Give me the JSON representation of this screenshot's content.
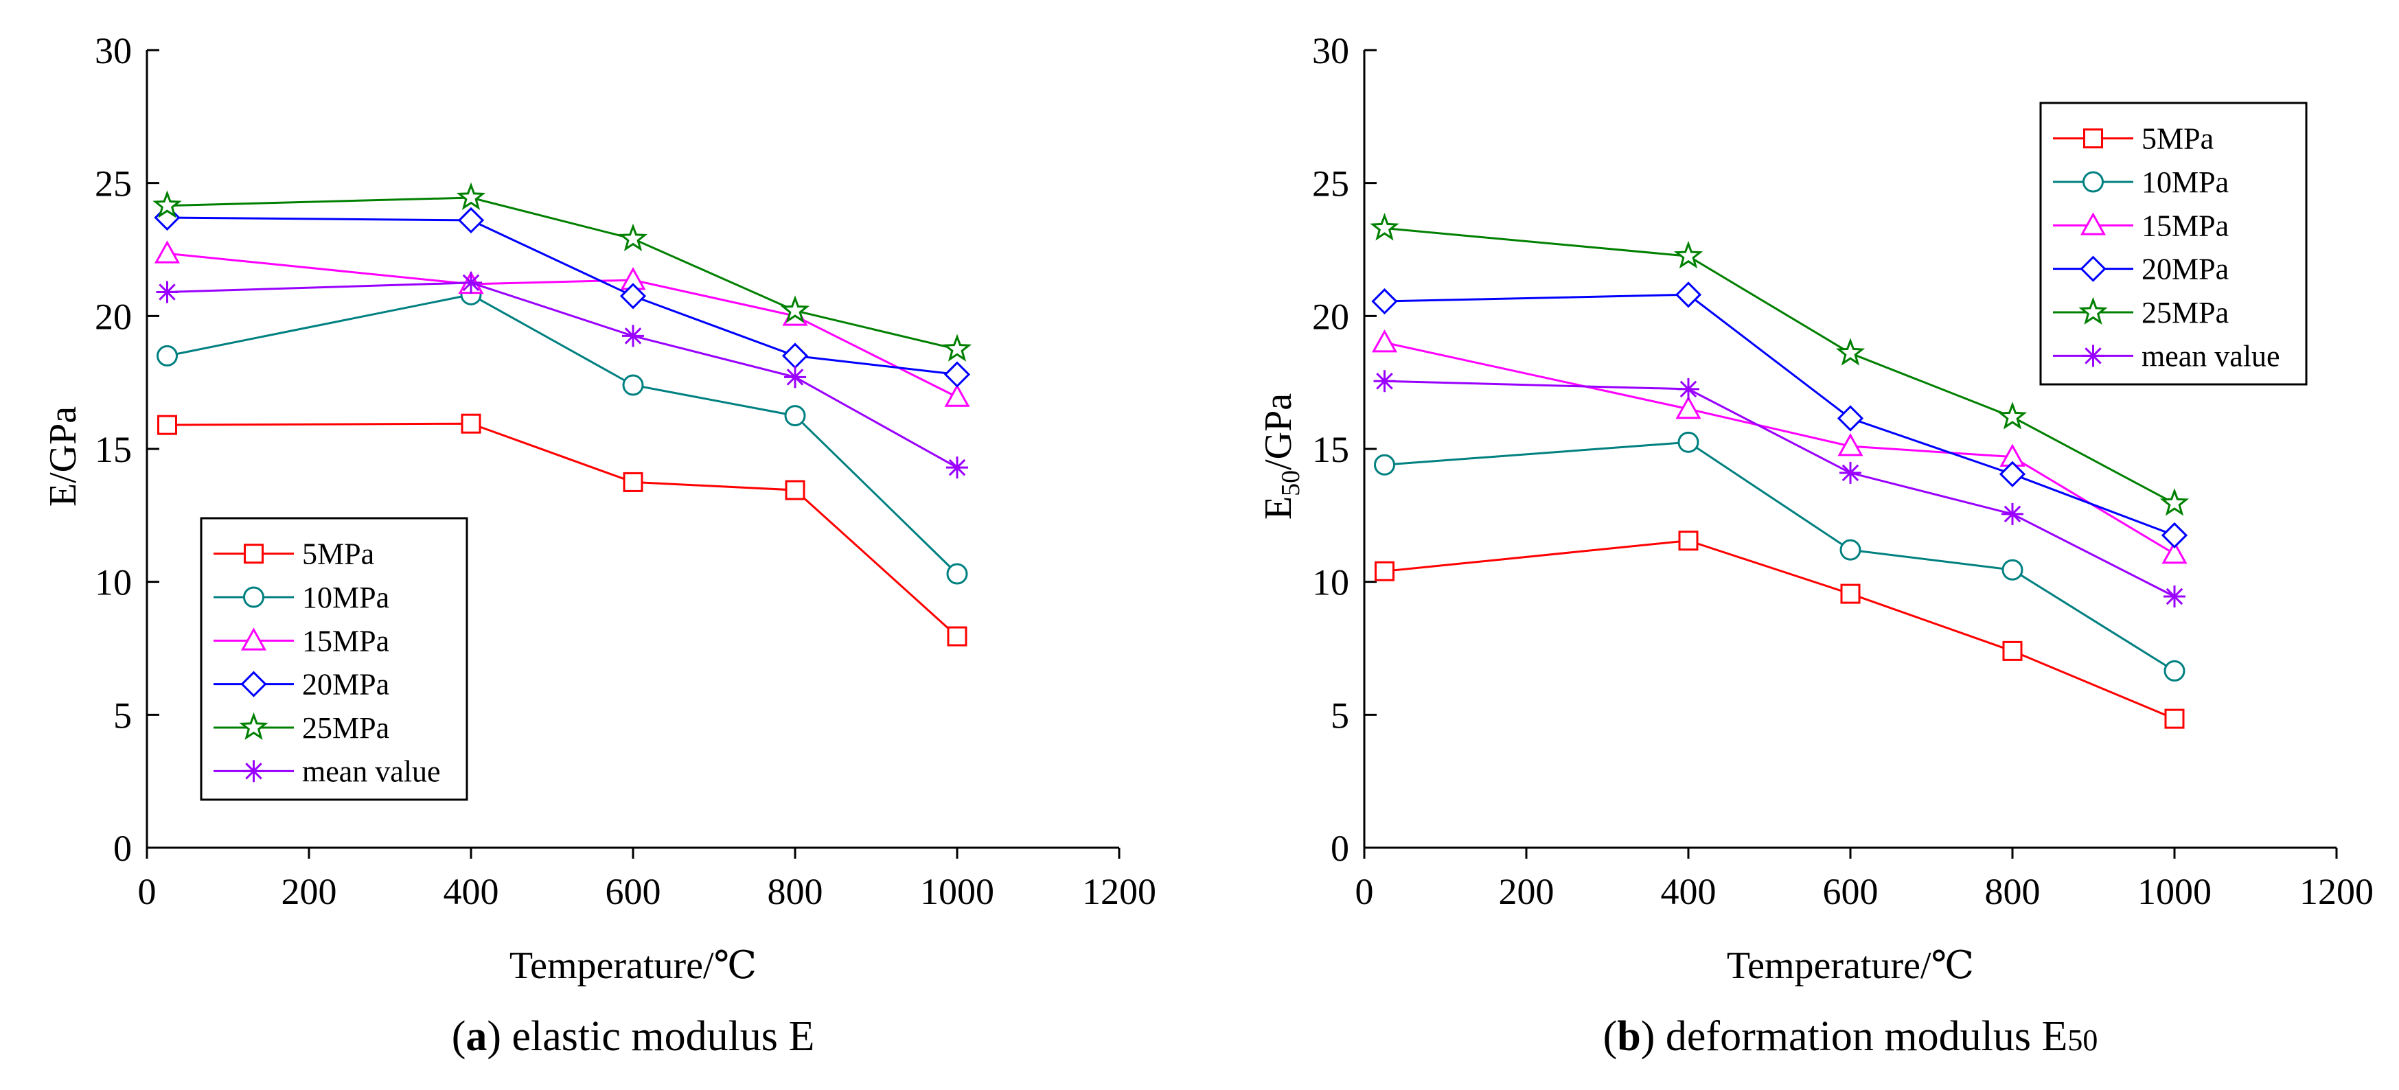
{
  "chart_data": [
    {
      "type": "line",
      "panel": "a",
      "caption_letter": "a",
      "caption_text": " elastic modulus E",
      "xlabel": "Temperature/℃",
      "ylabel": "E/GPa",
      "ylabel_main": "E/GPa",
      "ylabel_sub": "",
      "xlim": [
        0,
        1200
      ],
      "ylim": [
        0,
        30
      ],
      "xticks": [
        "0",
        "200",
        "400",
        "600",
        "800",
        "1000",
        "1200"
      ],
      "yticks": [
        "0",
        "5",
        "10",
        "15",
        "20",
        "25",
        "30"
      ],
      "legend_position": "bottom-left",
      "x": [
        25,
        400,
        600,
        800,
        1000
      ],
      "series": [
        {
          "name": "5MPa",
          "marker": "square",
          "color": "#ff0000",
          "values": [
            15.9,
            15.95,
            13.75,
            13.45,
            7.95
          ]
        },
        {
          "name": "10MPa",
          "marker": "circle",
          "color": "#008080",
          "values": [
            18.5,
            20.8,
            17.4,
            16.25,
            10.3
          ]
        },
        {
          "name": "15MPa",
          "marker": "triangle",
          "color": "#ff00ff",
          "values": [
            22.35,
            21.2,
            21.35,
            20.0,
            16.95
          ]
        },
        {
          "name": "20MPa",
          "marker": "diamond",
          "color": "#0000ff",
          "values": [
            23.7,
            23.6,
            20.75,
            18.5,
            17.8
          ]
        },
        {
          "name": "25MPa",
          "marker": "star",
          "color": "#008000",
          "values": [
            24.15,
            24.45,
            22.9,
            20.2,
            18.75
          ]
        },
        {
          "name": "mean value",
          "marker": "asterisk",
          "color": "#9900ff",
          "values": [
            20.9,
            21.25,
            19.25,
            17.7,
            14.3
          ]
        }
      ]
    },
    {
      "type": "line",
      "panel": "b",
      "caption_letter": "b",
      "caption_text": " deformation modulus E",
      "caption_sub": "50",
      "xlabel": "Temperature/℃",
      "ylabel": "E50/GPa",
      "ylabel_main": "E",
      "ylabel_sub": "50",
      "ylabel_rest": "/GPa",
      "xlim": [
        0,
        1200
      ],
      "ylim": [
        0,
        30
      ],
      "xticks": [
        "0",
        "200",
        "400",
        "600",
        "800",
        "1000",
        "1200"
      ],
      "yticks": [
        "0",
        "5",
        "10",
        "15",
        "20",
        "25",
        "30"
      ],
      "legend_position": "top-right",
      "x": [
        25,
        400,
        600,
        800,
        1000
      ],
      "series": [
        {
          "name": "5MPa",
          "marker": "square",
          "color": "#ff0000",
          "values": [
            10.4,
            11.55,
            9.55,
            7.4,
            4.85
          ]
        },
        {
          "name": "10MPa",
          "marker": "circle",
          "color": "#008080",
          "values": [
            14.4,
            15.25,
            11.2,
            10.45,
            6.65
          ]
        },
        {
          "name": "15MPa",
          "marker": "triangle",
          "color": "#ff00ff",
          "values": [
            19.0,
            16.5,
            15.1,
            14.7,
            11.05
          ]
        },
        {
          "name": "20MPa",
          "marker": "diamond",
          "color": "#0000ff",
          "values": [
            20.55,
            20.8,
            16.15,
            14.05,
            11.75
          ]
        },
        {
          "name": "25MPa",
          "marker": "star",
          "color": "#008000",
          "values": [
            23.3,
            22.25,
            18.6,
            16.2,
            12.95
          ]
        },
        {
          "name": "mean value",
          "marker": "asterisk",
          "color": "#9900ff",
          "values": [
            17.55,
            17.25,
            14.1,
            12.55,
            9.45
          ]
        }
      ]
    }
  ]
}
